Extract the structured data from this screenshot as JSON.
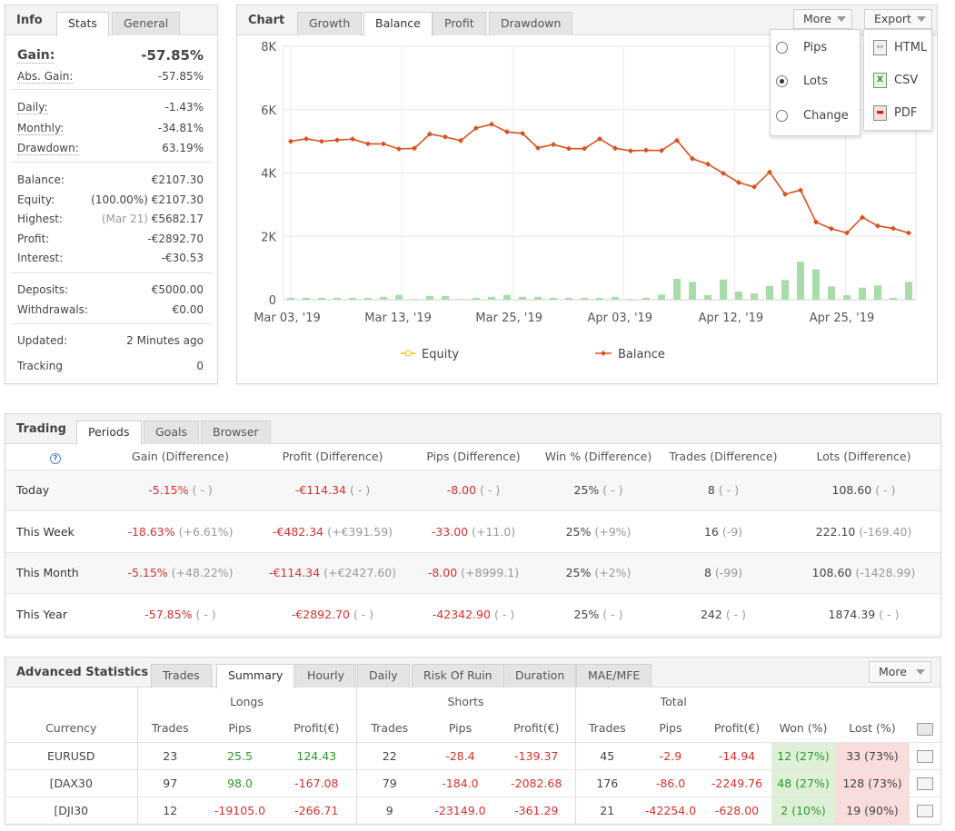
{
  "info": {
    "title": "Info",
    "tabs": [
      "Stats",
      "General"
    ],
    "gain_label": "Gain:",
    "gain_value": "-57.85%",
    "abs_gain_label": "Abs. Gain:",
    "abs_gain_value": "-57.85%",
    "daily_label": "Daily:",
    "daily_value": "-1.43%",
    "monthly_label": "Monthly:",
    "monthly_value": "-34.81%",
    "drawdown_label": "Drawdown:",
    "drawdown_value": "63.19%",
    "balance_label": "Balance:",
    "balance_value": "€2107.30",
    "equity_label": "Equity:",
    "equity_pct": "(100.00%)",
    "equity_value": "€2107.30",
    "highest_label": "Highest:",
    "highest_date": "(Mar 21)",
    "highest_value": "€5682.17",
    "profit_label": "Profit:",
    "profit_value": "-€2892.70",
    "interest_label": "Interest:",
    "interest_value": "-€30.53",
    "deposits_label": "Deposits:",
    "deposits_value": "€5000.00",
    "withdrawals_label": "Withdrawals:",
    "withdrawals_value": "€0.00",
    "updated_label": "Updated:",
    "updated_value": "2 Minutes ago",
    "tracking_label": "Tracking",
    "tracking_value": "0"
  },
  "chart": {
    "title": "Chart",
    "tabs": [
      "Growth",
      "Balance",
      "Profit",
      "Drawdown"
    ],
    "more_label": "More",
    "export_label": "Export",
    "more_options": [
      "Pips",
      "Lots",
      "Change"
    ],
    "selected_option": "Lots",
    "export_options": [
      "HTML",
      "CSV",
      "PDF"
    ],
    "icon_labels": [
      "‹›",
      "X",
      "▬"
    ]
  },
  "chart_data": {
    "type": "line",
    "x_ticks": [
      "Mar 03, '19",
      "Mar 13, '19",
      "Mar 25, '19",
      "Apr 03, '19",
      "Apr 12, '19",
      "Apr 25, '19"
    ],
    "y_ticks": [
      "8K",
      "6K",
      "4K",
      "2K",
      "0"
    ],
    "ylim": [
      0,
      8000
    ],
    "grid": true,
    "legend_position": "bottom",
    "series": [
      {
        "name": "Equity",
        "color": "#f0c000",
        "values": []
      },
      {
        "name": "Balance",
        "color": "#d9501e",
        "values": [
          5000,
          5080,
          5000,
          5040,
          5070,
          4920,
          4920,
          4760,
          4780,
          5230,
          5140,
          5020,
          5420,
          5540,
          5300,
          5250,
          4790,
          4900,
          4770,
          4770,
          5080,
          4780,
          4700,
          4720,
          4710,
          5030,
          4450,
          4280,
          3990,
          3700,
          3560,
          4030,
          3330,
          3460,
          2450,
          2240,
          2110,
          2600,
          2330,
          2250,
          2107
        ]
      }
    ],
    "bars": {
      "color": "#a8dca8",
      "values": [
        60,
        60,
        60,
        60,
        60,
        60,
        90,
        150,
        20,
        120,
        120,
        20,
        60,
        90,
        150,
        90,
        90,
        60,
        60,
        60,
        60,
        90,
        20,
        60,
        160,
        660,
        560,
        150,
        640,
        260,
        200,
        430,
        620,
        1200,
        960,
        420,
        140,
        380,
        450,
        60,
        560
      ]
    }
  },
  "trading": {
    "title": "Trading",
    "tabs": [
      "Periods",
      "Goals",
      "Browser"
    ],
    "help_icon_glyph": "?",
    "columns": [
      "Gain (Difference)",
      "Profit (Difference)",
      "Pips (Difference)",
      "Win % (Difference)",
      "Trades (Difference)",
      "Lots (Difference)"
    ],
    "rows": [
      {
        "period": "Today",
        "gain": "-5.15%",
        "gain_d": "( - )",
        "profit": "-€114.34",
        "profit_d": "( - )",
        "pips": "-8.00",
        "pips_d": "( - )",
        "win": "25%",
        "win_d": "( - )",
        "trades": "8",
        "trades_d": "( - )",
        "lots": "108.60",
        "lots_d": "( - )"
      },
      {
        "period": "This Week",
        "gain": "-18.63%",
        "gain_d": "(+6.61%)",
        "profit": "-€482.34",
        "profit_d": "(+€391.59)",
        "pips": "-33.00",
        "pips_d": "(+11.0)",
        "win": "25%",
        "win_d": "(+9%)",
        "trades": "16",
        "trades_d": "(-9)",
        "lots": "222.10",
        "lots_d": "(-169.40)"
      },
      {
        "period": "This Month",
        "gain": "-5.15%",
        "gain_d": "(+48.22%)",
        "profit": "-€114.34",
        "profit_d": "(+€2427.60)",
        "pips": "-8.00",
        "pips_d": "(+8999.1)",
        "win": "25%",
        "win_d": "(+2%)",
        "trades": "8",
        "trades_d": "(-99)",
        "lots": "108.60",
        "lots_d": "(-1428.99)"
      },
      {
        "period": "This Year",
        "gain": "-57.85%",
        "gain_d": "( - )",
        "profit": "-€2892.70",
        "profit_d": "( - )",
        "pips": "-42342.90",
        "pips_d": "( - )",
        "win": "25%",
        "win_d": "( - )",
        "trades": "242",
        "trades_d": "( - )",
        "lots": "1874.39",
        "lots_d": "( - )"
      }
    ]
  },
  "advanced": {
    "title": "Advanced Statistics",
    "tabs": [
      "Trades",
      "Summary",
      "Hourly",
      "Daily",
      "Risk Of Ruin",
      "Duration",
      "MAE/MFE"
    ],
    "more_label": "More",
    "group_longs": "Longs",
    "group_shorts": "Shorts",
    "group_total": "Total",
    "columns": [
      "Currency",
      "Trades",
      "Pips",
      "Profit(€)",
      "Trades",
      "Pips",
      "Profit(€)",
      "Trades",
      "Pips",
      "Profit(€)",
      "Won (%)",
      "Lost (%)"
    ],
    "rows": [
      {
        "currency": "EURUSD",
        "l_trades": "23",
        "l_pips": "25.5",
        "l_profit": "124.43",
        "s_trades": "22",
        "s_pips": "-28.4",
        "s_profit": "-139.37",
        "t_trades": "45",
        "t_pips": "-2.9",
        "t_profit": "-14.94",
        "won": "12 (27%)",
        "lost": "33 (73%)"
      },
      {
        "currency": "[DAX30",
        "l_trades": "97",
        "l_pips": "98.0",
        "l_profit": "-167.08",
        "s_trades": "79",
        "s_pips": "-184.0",
        "s_profit": "-2082.68",
        "t_trades": "176",
        "t_pips": "-86.0",
        "t_profit": "-2249.76",
        "won": "48 (27%)",
        "lost": "128 (73%)"
      },
      {
        "currency": "[DJI30",
        "l_trades": "12",
        "l_pips": "-19105.0",
        "l_profit": "-266.71",
        "s_trades": "9",
        "s_pips": "-23149.0",
        "s_profit": "-361.29",
        "t_trades": "21",
        "t_pips": "-42254.0",
        "t_profit": "-628.00",
        "won": "2 (10%)",
        "lost": "19 (90%)"
      }
    ]
  }
}
